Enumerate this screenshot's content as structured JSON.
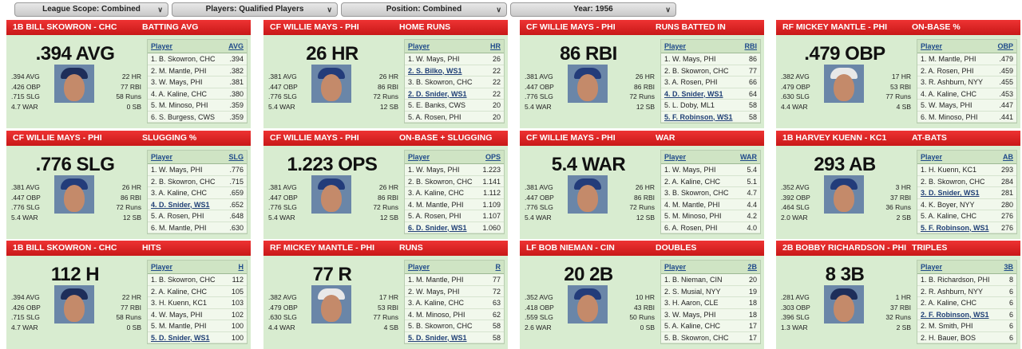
{
  "filters": [
    {
      "label": "League Scope: Combined"
    },
    {
      "label": "Players: Qualified Players"
    },
    {
      "label": "Position: Combined"
    },
    {
      "label": "Year: 1956"
    }
  ],
  "cards": [
    {
      "player": "1B BILL SKOWRON - CHC",
      "stat": "BATTING AVG",
      "big": ".394 AVG",
      "left": [
        ".394 AVG",
        ".426 OBP",
        ".715 SLG",
        "4.7 WAR"
      ],
      "right": [
        "22 HR",
        "77 RBI",
        "58 Runs",
        "0 SB"
      ],
      "colPlayer": "Player",
      "colStat": "AVG",
      "cap": "dark",
      "rows": [
        {
          "name": "1. B. Skowron, CHC",
          "val": ".394",
          "hl": false
        },
        {
          "name": "2. M. Mantle, PHI",
          "val": ".382",
          "hl": false
        },
        {
          "name": "3. W. Mays, PHI",
          "val": ".381",
          "hl": false
        },
        {
          "name": "4. A. Kaline, CHC",
          "val": ".380",
          "hl": false
        },
        {
          "name": "5. M. Minoso, PHI",
          "val": ".359",
          "hl": false
        },
        {
          "name": "6. S. Burgess, CWS",
          "val": ".359",
          "hl": false
        }
      ]
    },
    {
      "player": "CF WILLIE MAYS - PHI",
      "stat": "HOME RUNS",
      "big": "26 HR",
      "left": [
        ".381 AVG",
        ".447 OBP",
        ".776 SLG",
        "5.4 WAR"
      ],
      "right": [
        "26 HR",
        "86 RBI",
        "72 Runs",
        "12 SB"
      ],
      "colPlayer": "Player",
      "colStat": "HR",
      "cap": "blue",
      "rows": [
        {
          "name": "1. W. Mays, PHI",
          "val": "26",
          "hl": false
        },
        {
          "name": "2. S. Bilko, WS1",
          "val": "22",
          "hl": true
        },
        {
          "name": "3. B. Skowron, CHC",
          "val": "22",
          "hl": false
        },
        {
          "name": "2. D. Snider, WS1",
          "val": "22",
          "hl": true
        },
        {
          "name": "5. E. Banks, CWS",
          "val": "20",
          "hl": false
        },
        {
          "name": "5. A. Rosen, PHI",
          "val": "20",
          "hl": false
        }
      ]
    },
    {
      "player": "CF WILLIE MAYS - PHI",
      "stat": "RUNS BATTED IN",
      "big": "86 RBI",
      "left": [
        ".381 AVG",
        ".447 OBP",
        ".776 SLG",
        "5.4 WAR"
      ],
      "right": [
        "26 HR",
        "86 RBI",
        "72 Runs",
        "12 SB"
      ],
      "colPlayer": "Player",
      "colStat": "RBI",
      "cap": "blue",
      "rows": [
        {
          "name": "1. W. Mays, PHI",
          "val": "86",
          "hl": false
        },
        {
          "name": "2. B. Skowron, CHC",
          "val": "77",
          "hl": false
        },
        {
          "name": "3. A. Rosen, PHI",
          "val": "66",
          "hl": false
        },
        {
          "name": "4. D. Snider, WS1",
          "val": "64",
          "hl": true
        },
        {
          "name": "5. L. Doby, ML1",
          "val": "58",
          "hl": false
        },
        {
          "name": "5. F. Robinson, WS1",
          "val": "58",
          "hl": true
        }
      ]
    },
    {
      "player": "RF MICKEY MANTLE - PHI",
      "stat": "ON-BASE %",
      "big": ".479 OBP",
      "left": [
        ".382 AVG",
        ".479 OBP",
        ".630 SLG",
        "4.4 WAR"
      ],
      "right": [
        "17 HR",
        "53 RBI",
        "77 Runs",
        "4 SB"
      ],
      "colPlayer": "Player",
      "colStat": "OBP",
      "cap": "white",
      "rows": [
        {
          "name": "1. M. Mantle, PHI",
          "val": ".479",
          "hl": false
        },
        {
          "name": "2. A. Rosen, PHI",
          "val": ".459",
          "hl": false
        },
        {
          "name": "3. R. Ashburn, NYY",
          "val": ".455",
          "hl": false
        },
        {
          "name": "4. A. Kaline, CHC",
          "val": ".453",
          "hl": false
        },
        {
          "name": "5. W. Mays, PHI",
          "val": ".447",
          "hl": false
        },
        {
          "name": "6. M. Minoso, PHI",
          "val": ".441",
          "hl": false
        }
      ]
    },
    {
      "player": "CF WILLIE MAYS - PHI",
      "stat": "SLUGGING %",
      "big": ".776 SLG",
      "left": [
        ".381 AVG",
        ".447 OBP",
        ".776 SLG",
        "5.4 WAR"
      ],
      "right": [
        "26 HR",
        "86 RBI",
        "72 Runs",
        "12 SB"
      ],
      "colPlayer": "Player",
      "colStat": "SLG",
      "cap": "blue",
      "rows": [
        {
          "name": "1. W. Mays, PHI",
          "val": ".776",
          "hl": false
        },
        {
          "name": "2. B. Skowron, CHC",
          "val": ".715",
          "hl": false
        },
        {
          "name": "3. A. Kaline, CHC",
          "val": ".659",
          "hl": false
        },
        {
          "name": "4. D. Snider, WS1",
          "val": ".652",
          "hl": true
        },
        {
          "name": "5. A. Rosen, PHI",
          "val": ".648",
          "hl": false
        },
        {
          "name": "6. M. Mantle, PHI",
          "val": ".630",
          "hl": false
        }
      ]
    },
    {
      "player": "CF WILLIE MAYS - PHI",
      "stat": "ON-BASE + SLUGGING",
      "big": "1.223 OPS",
      "left": [
        ".381 AVG",
        ".447 OBP",
        ".776 SLG",
        "5.4 WAR"
      ],
      "right": [
        "26 HR",
        "86 RBI",
        "72 Runs",
        "12 SB"
      ],
      "colPlayer": "Player",
      "colStat": "OPS",
      "cap": "blue",
      "rows": [
        {
          "name": "1. W. Mays, PHI",
          "val": "1.223",
          "hl": false
        },
        {
          "name": "2. B. Skowron, CHC",
          "val": "1.141",
          "hl": false
        },
        {
          "name": "3. A. Kaline, CHC",
          "val": "1.112",
          "hl": false
        },
        {
          "name": "4. M. Mantle, PHI",
          "val": "1.109",
          "hl": false
        },
        {
          "name": "5. A. Rosen, PHI",
          "val": "1.107",
          "hl": false
        },
        {
          "name": "6. D. Snider, WS1",
          "val": "1.060",
          "hl": true
        }
      ]
    },
    {
      "player": "CF WILLIE MAYS - PHI",
      "stat": "WAR",
      "big": "5.4 WAR",
      "left": [
        ".381 AVG",
        ".447 OBP",
        ".776 SLG",
        "5.4 WAR"
      ],
      "right": [
        "26 HR",
        "86 RBI",
        "72 Runs",
        "12 SB"
      ],
      "colPlayer": "Player",
      "colStat": "WAR",
      "cap": "blue",
      "rows": [
        {
          "name": "1. W. Mays, PHI",
          "val": "5.4",
          "hl": false
        },
        {
          "name": "2. A. Kaline, CHC",
          "val": "5.1",
          "hl": false
        },
        {
          "name": "3. B. Skowron, CHC",
          "val": "4.7",
          "hl": false
        },
        {
          "name": "4. M. Mantle, PHI",
          "val": "4.4",
          "hl": false
        },
        {
          "name": "5. M. Minoso, PHI",
          "val": "4.2",
          "hl": false
        },
        {
          "name": "6. A. Rosen, PHI",
          "val": "4.0",
          "hl": false
        }
      ]
    },
    {
      "player": "1B HARVEY KUENN - KC1",
      "stat": "AT-BATS",
      "big": "293 AB",
      "left": [
        ".352 AVG",
        ".392 OBP",
        ".464 SLG",
        "2.0 WAR"
      ],
      "right": [
        "3 HR",
        "37 RBI",
        "36 Runs",
        "2 SB"
      ],
      "colPlayer": "Player",
      "colStat": "AB",
      "cap": "blue",
      "rows": [
        {
          "name": "1. H. Kuenn, KC1",
          "val": "293",
          "hl": false
        },
        {
          "name": "2. B. Skowron, CHC",
          "val": "284",
          "hl": false
        },
        {
          "name": "3. D. Snider, WS1",
          "val": "281",
          "hl": true
        },
        {
          "name": "4. K. Boyer, NYY",
          "val": "280",
          "hl": false
        },
        {
          "name": "5. A. Kaline, CHC",
          "val": "276",
          "hl": false
        },
        {
          "name": "5. F. Robinson, WS1",
          "val": "276",
          "hl": true
        }
      ]
    },
    {
      "player": "1B BILL SKOWRON - CHC",
      "stat": "HITS",
      "big": "112 H",
      "left": [
        ".394 AVG",
        ".426 OBP",
        ".715 SLG",
        "4.7 WAR"
      ],
      "right": [
        "22 HR",
        "77 RBI",
        "58 Runs",
        "0 SB"
      ],
      "colPlayer": "Player",
      "colStat": "H",
      "cap": "dark",
      "rows": [
        {
          "name": "1. B. Skowron, CHC",
          "val": "112",
          "hl": false
        },
        {
          "name": "2. A. Kaline, CHC",
          "val": "105",
          "hl": false
        },
        {
          "name": "3. H. Kuenn, KC1",
          "val": "103",
          "hl": false
        },
        {
          "name": "4. W. Mays, PHI",
          "val": "102",
          "hl": false
        },
        {
          "name": "5. M. Mantle, PHI",
          "val": "100",
          "hl": false
        },
        {
          "name": "5. D. Snider, WS1",
          "val": "100",
          "hl": true
        }
      ]
    },
    {
      "player": "RF MICKEY MANTLE - PHI",
      "stat": "RUNS",
      "big": "77 R",
      "left": [
        ".382 AVG",
        ".479 OBP",
        ".630 SLG",
        "4.4 WAR"
      ],
      "right": [
        "17 HR",
        "53 RBI",
        "77 Runs",
        "4 SB"
      ],
      "colPlayer": "Player",
      "colStat": "R",
      "cap": "white",
      "rows": [
        {
          "name": "1. M. Mantle, PHI",
          "val": "77",
          "hl": false
        },
        {
          "name": "2. W. Mays, PHI",
          "val": "72",
          "hl": false
        },
        {
          "name": "3. A. Kaline, CHC",
          "val": "63",
          "hl": false
        },
        {
          "name": "4. M. Minoso, PHI",
          "val": "62",
          "hl": false
        },
        {
          "name": "5. B. Skowron, CHC",
          "val": "58",
          "hl": false
        },
        {
          "name": "5. D. Snider, WS1",
          "val": "58",
          "hl": true
        }
      ]
    },
    {
      "player": "LF BOB NIEMAN - CIN",
      "stat": "DOUBLES",
      "big": "20 2B",
      "left": [
        ".352 AVG",
        ".418 OBP",
        ".559 SLG",
        "2.6 WAR"
      ],
      "right": [
        "10 HR",
        "43 RBI",
        "50 Runs",
        "0 SB"
      ],
      "colPlayer": "Player",
      "colStat": "2B",
      "cap": "blue",
      "rows": [
        {
          "name": "1. B. Nieman, CIN",
          "val": "20",
          "hl": false
        },
        {
          "name": "2. S. Musial, NYY",
          "val": "19",
          "hl": false
        },
        {
          "name": "3. H. Aaron, CLE",
          "val": "18",
          "hl": false
        },
        {
          "name": "3. W. Mays, PHI",
          "val": "18",
          "hl": false
        },
        {
          "name": "5. A. Kaline, CHC",
          "val": "17",
          "hl": false
        },
        {
          "name": "5. B. Skowron, CHC",
          "val": "17",
          "hl": false
        }
      ]
    },
    {
      "player": "2B BOBBY RICHARDSON - PHI",
      "stat": "TRIPLES",
      "big": "8 3B",
      "left": [
        ".281 AVG",
        ".303 OBP",
        ".396 SLG",
        "1.3 WAR"
      ],
      "right": [
        "1 HR",
        "37 RBI",
        "32 Runs",
        "2 SB"
      ],
      "colPlayer": "Player",
      "colStat": "3B",
      "cap": "dark",
      "rows": [
        {
          "name": "1. B. Richardson, PHI",
          "val": "8",
          "hl": false
        },
        {
          "name": "2. R. Ashburn, NYY",
          "val": "6",
          "hl": false
        },
        {
          "name": "2. A. Kaline, CHC",
          "val": "6",
          "hl": false
        },
        {
          "name": "2. F. Robinson, WS1",
          "val": "6",
          "hl": true
        },
        {
          "name": "2. M. Smith, PHI",
          "val": "6",
          "hl": false
        },
        {
          "name": "2. H. Bauer, BOS",
          "val": "6",
          "hl": false
        }
      ]
    }
  ]
}
